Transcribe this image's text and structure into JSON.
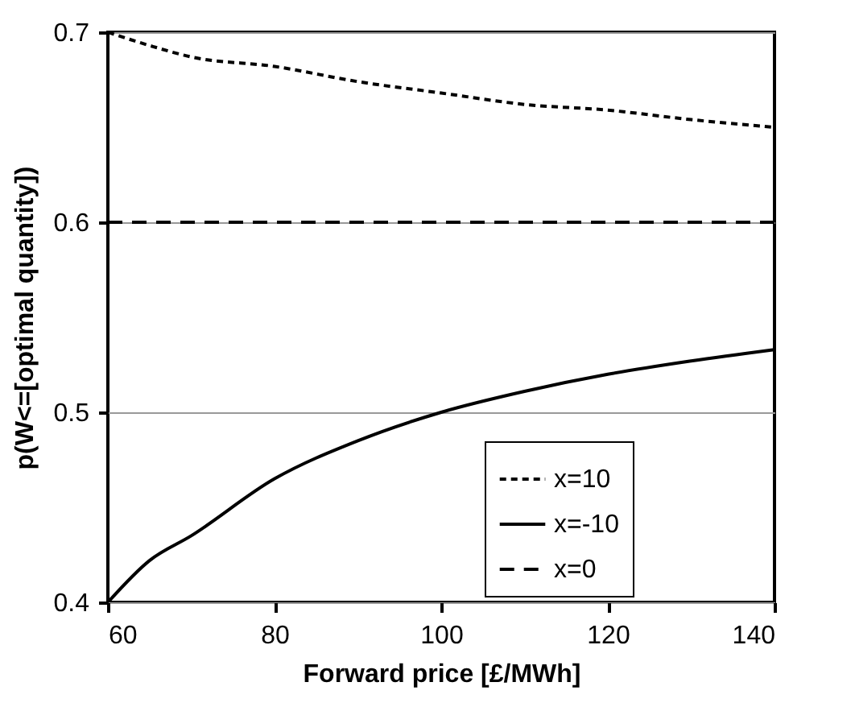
{
  "chart_data": {
    "type": "line",
    "xlabel": "Forward price [£/MWh]",
    "ylabel": "p(W<=[optimal quantity])",
    "x": [
      60,
      65,
      70,
      80,
      90,
      100,
      110,
      120,
      130,
      140
    ],
    "series": [
      {
        "name": "x=10",
        "color": "#000000",
        "line_style": "dotted",
        "values": [
          0.7,
          0.693,
          0.687,
          0.682,
          0.674,
          0.668,
          0.662,
          0.659,
          0.654,
          0.65
        ]
      },
      {
        "name": "x=-10",
        "color": "#000000",
        "line_style": "solid",
        "values": [
          0.4,
          0.422,
          0.435,
          0.465,
          0.485,
          0.5,
          0.511,
          0.52,
          0.527,
          0.533
        ]
      },
      {
        "name": "x=0",
        "color": "#000000",
        "line_style": "dashed",
        "values": [
          0.6,
          0.6,
          0.6,
          0.6,
          0.6,
          0.6,
          0.6,
          0.6,
          0.6,
          0.6
        ]
      }
    ],
    "xlim": [
      60,
      140
    ],
    "xticks": [
      60,
      80,
      100,
      120,
      140
    ],
    "ylim": [
      0.4,
      0.7
    ],
    "yticks": [
      0.4,
      0.5,
      0.6,
      0.7
    ],
    "grid": "y",
    "legend": "bottom right",
    "marker": "none"
  }
}
